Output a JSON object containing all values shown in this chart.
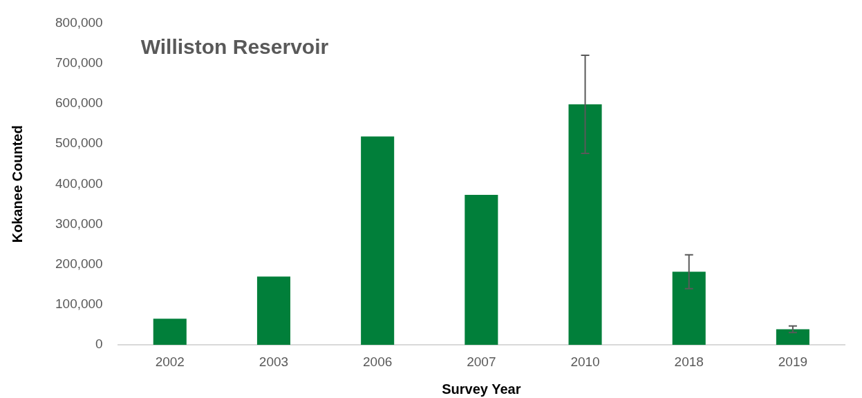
{
  "chart_data": {
    "type": "bar",
    "title": "Williston Reservoir",
    "xlabel": "Survey Year",
    "ylabel": "Kokanee Counted",
    "categories": [
      "2002",
      "2003",
      "2006",
      "2007",
      "2010",
      "2018",
      "2019"
    ],
    "values": [
      65000,
      170000,
      518000,
      373000,
      598000,
      182000,
      39000
    ],
    "errors": [
      null,
      null,
      null,
      null,
      122000,
      42000,
      8000
    ],
    "color": "#017f3a",
    "ylim": [
      0,
      800000
    ],
    "yticks": [
      {
        "value": 0,
        "label": "0"
      },
      {
        "value": 100000,
        "label": "100,000"
      },
      {
        "value": 200000,
        "label": "200,000"
      },
      {
        "value": 300000,
        "label": "300,000"
      },
      {
        "value": 400000,
        "label": "400,000"
      },
      {
        "value": 500000,
        "label": "500,000"
      },
      {
        "value": 600000,
        "label": "600,000"
      },
      {
        "value": 700000,
        "label": "700,000"
      },
      {
        "value": 800000,
        "label": "800,000"
      }
    ],
    "grid": false,
    "legend": false
  }
}
